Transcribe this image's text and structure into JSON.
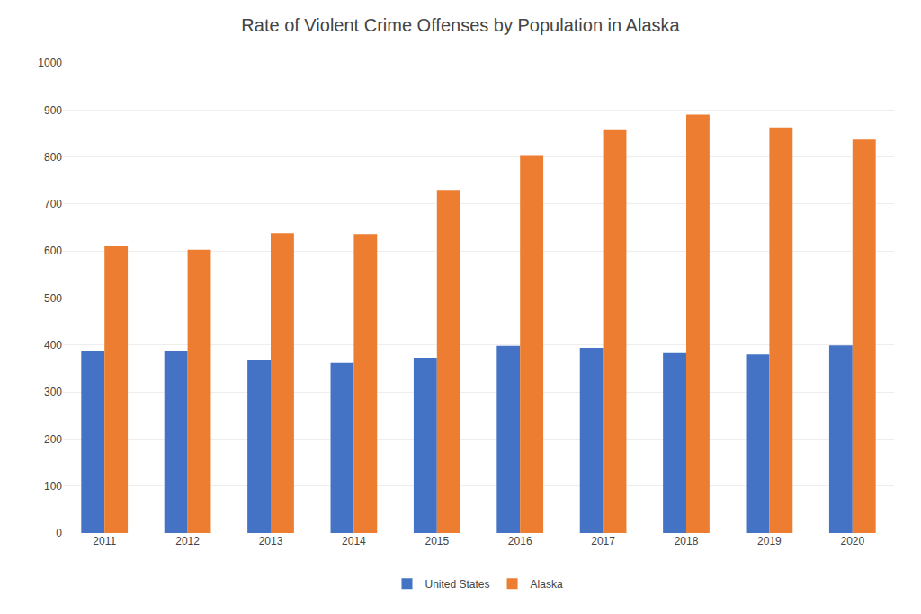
{
  "chart_data": {
    "type": "bar",
    "title": "Rate of Violent Crime Offenses by Population in Alaska",
    "categories": [
      "2011",
      "2012",
      "2013",
      "2014",
      "2015",
      "2016",
      "2017",
      "2018",
      "2019",
      "2020"
    ],
    "series": [
      {
        "name": "United States",
        "color": "#4472C4",
        "values": [
          386,
          387,
          368,
          362,
          373,
          398,
          394,
          383,
          380,
          399
        ]
      },
      {
        "name": "Alaska",
        "color": "#ED7D31",
        "values": [
          610,
          603,
          638,
          636,
          730,
          804,
          857,
          890,
          863,
          837
        ]
      }
    ],
    "ylim": [
      0,
      1000
    ],
    "yticks": [
      0,
      100,
      200,
      300,
      400,
      500,
      600,
      700,
      800,
      900,
      1000
    ],
    "grid": true,
    "legend": "bottom"
  }
}
